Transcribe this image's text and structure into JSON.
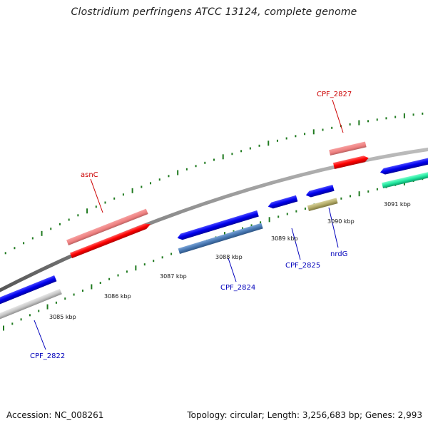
{
  "title": "Clostridium perfringens ATCC 13124, complete genome",
  "footer": {
    "accession": "Accession: NC_008261",
    "summary": "Topology: circular; Length: 3,256,683 bp; Genes: 2,993"
  },
  "scale_labels": [
    "3085 kbp",
    "3086 kbp",
    "3087 kbp",
    "3088 kbp",
    "3089 kbp",
    "3090 kbp",
    "3091 kbp"
  ],
  "gene_labels": [
    {
      "text": "asnC",
      "color": "#cc0000"
    },
    {
      "text": "CPF_2827",
      "color": "#cc0000"
    },
    {
      "text": "CPF_2822",
      "color": "#0000bb"
    },
    {
      "text": "CPF_2824",
      "color": "#0000bb"
    },
    {
      "text": "CPF_2825",
      "color": "#0000bb"
    },
    {
      "text": "nrdG",
      "color": "#0000bb"
    }
  ],
  "colors": {
    "forward_cds": "#ff0000",
    "forward_gene": "#f08080",
    "reverse_cds": "#0000ee",
    "steel_gene": "#4a7ab5",
    "olive_gene": "#b5ad6a",
    "gray_gene": "#c8c8c8",
    "teal_gene": "#22e8a0",
    "ticks": "#1f7a1f",
    "backbone": "#888888"
  }
}
